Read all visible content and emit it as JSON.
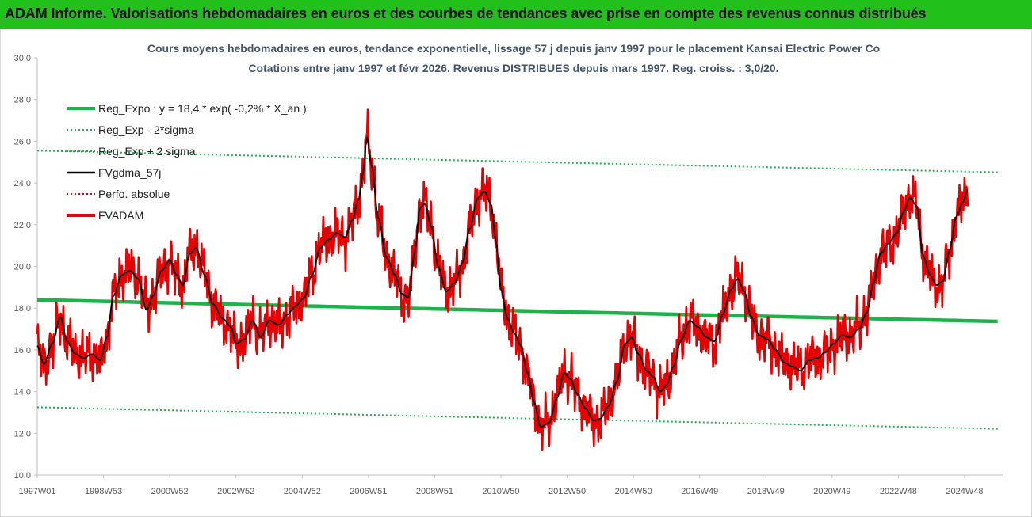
{
  "banner": {
    "title": "ADAM Informe. Valorisations hebdomadaires en euros et des courbes de tendances avec prise en compte des revenus connus distribués",
    "color": "#22c01a"
  },
  "chart_data": {
    "type": "line",
    "title": "Cours moyens hebdomadaires en euros, tendance exponentielle, lissage 57 j depuis janv 1997 pour le placement Kansai Electric Power Co",
    "subtitle": "Cotations entre janv 1997 et févr 2026. Revenus DISTRIBUES depuis mars 1997. Reg. croiss. : 3,0/20.",
    "xlabel": "",
    "ylabel": "",
    "ylim": [
      10.0,
      30.0
    ],
    "ytick_step": 2.0,
    "yticks": [
      "10,0",
      "12,0",
      "14,0",
      "16,0",
      "18,0",
      "20,0",
      "22,0",
      "24,0",
      "26,0",
      "28,0",
      "30,0"
    ],
    "xlim": [
      1997.0,
      2026.15
    ],
    "xticks": [
      {
        "label": "1997W01",
        "x": 1997.0
      },
      {
        "label": "1998W53",
        "x": 1999.0
      },
      {
        "label": "2000W52",
        "x": 2001.0
      },
      {
        "label": "2002W52",
        "x": 2003.0
      },
      {
        "label": "2004W52",
        "x": 2005.0
      },
      {
        "label": "2006W51",
        "x": 2007.0
      },
      {
        "label": "2008W51",
        "x": 2009.0
      },
      {
        "label": "2010W50",
        "x": 2011.0
      },
      {
        "label": "2012W50",
        "x": 2013.0
      },
      {
        "label": "2014W50",
        "x": 2015.0
      },
      {
        "label": "2016W49",
        "x": 2017.0
      },
      {
        "label": "2018W49",
        "x": 2019.0
      },
      {
        "label": "2020W49",
        "x": 2021.0
      },
      {
        "label": "2022W48",
        "x": 2023.0
      },
      {
        "label": "2024W48",
        "x": 2025.0
      }
    ],
    "grid": false,
    "legend_position": "top-left",
    "legend": [
      {
        "name": "Reg_Expo : y = 18,4 * exp( -0,2% *  X_an )",
        "color": "#1db34a",
        "style": "solid-thick"
      },
      {
        "name": "Reg_Exp - 2*sigma",
        "color": "#1db34a",
        "style": "dotted"
      },
      {
        "name": "Reg_Exp + 2 sigma",
        "color": "#1db34a",
        "style": "dotted"
      },
      {
        "name": "FVgdma_57j",
        "color": "#000000",
        "style": "solid"
      },
      {
        "name": "Perfo. absolue",
        "color": "#e60000",
        "style": "dotted"
      },
      {
        "name": "FVADAM",
        "color": "#e60000",
        "style": "solid-thick"
      }
    ],
    "regression": {
      "a": 18.4,
      "rate_per_year": -0.002,
      "low_offset": -5.15,
      "high_offset": 7.15
    },
    "fvadam_anchors": [
      [
        1997.0,
        16.2
      ],
      [
        1997.2,
        15.3
      ],
      [
        1997.45,
        16.3
      ],
      [
        1997.7,
        17.6
      ],
      [
        1997.9,
        16.4
      ],
      [
        1998.15,
        15.8
      ],
      [
        1998.4,
        15.6
      ],
      [
        1998.65,
        15.8
      ],
      [
        1998.9,
        15.5
      ],
      [
        1999.1,
        16.6
      ],
      [
        1999.3,
        18.6
      ],
      [
        1999.55,
        19.6
      ],
      [
        1999.8,
        19.8
      ],
      [
        2000.05,
        19.4
      ],
      [
        2000.3,
        17.9
      ],
      [
        2000.5,
        18.6
      ],
      [
        2000.75,
        19.8
      ],
      [
        2001.0,
        20.3
      ],
      [
        2001.2,
        19.6
      ],
      [
        2001.4,
        19.1
      ],
      [
        2001.6,
        20.6
      ],
      [
        2001.8,
        20.9
      ],
      [
        2002.05,
        19.6
      ],
      [
        2002.3,
        18.2
      ],
      [
        2002.6,
        17.5
      ],
      [
        2002.85,
        17.1
      ],
      [
        2003.0,
        16.3
      ],
      [
        2003.25,
        16.5
      ],
      [
        2003.5,
        17.4
      ],
      [
        2003.75,
        16.6
      ],
      [
        2004.0,
        17.4
      ],
      [
        2004.3,
        17.2
      ],
      [
        2004.55,
        17.7
      ],
      [
        2004.8,
        18.1
      ],
      [
        2005.05,
        18.5
      ],
      [
        2005.3,
        19.6
      ],
      [
        2005.55,
        20.9
      ],
      [
        2005.8,
        21.3
      ],
      [
        2006.05,
        21.6
      ],
      [
        2006.3,
        21.4
      ],
      [
        2006.5,
        22.2
      ],
      [
        2006.7,
        23.2
      ],
      [
        2006.85,
        24.6
      ],
      [
        2006.95,
        26.2
      ],
      [
        2007.1,
        24.8
      ],
      [
        2007.3,
        22.3
      ],
      [
        2007.55,
        20.4
      ],
      [
        2007.8,
        19.6
      ],
      [
        2008.0,
        18.7
      ],
      [
        2008.2,
        18.5
      ],
      [
        2008.4,
        20.7
      ],
      [
        2008.55,
        22.8
      ],
      [
        2008.7,
        23.0
      ],
      [
        2008.9,
        21.9
      ],
      [
        2009.1,
        20.0
      ],
      [
        2009.35,
        18.8
      ],
      [
        2009.6,
        19.2
      ],
      [
        2009.85,
        20.2
      ],
      [
        2010.05,
        21.8
      ],
      [
        2010.3,
        23.3
      ],
      [
        2010.5,
        23.6
      ],
      [
        2010.7,
        23.0
      ],
      [
        2010.85,
        21.2
      ],
      [
        2011.0,
        18.9
      ],
      [
        2011.2,
        17.5
      ],
      [
        2011.4,
        16.8
      ],
      [
        2011.6,
        16.2
      ],
      [
        2011.8,
        14.9
      ],
      [
        2012.0,
        13.5
      ],
      [
        2012.2,
        12.3
      ],
      [
        2012.45,
        12.5
      ],
      [
        2012.7,
        13.7
      ],
      [
        2012.9,
        14.9
      ],
      [
        2013.1,
        14.6
      ],
      [
        2013.3,
        13.9
      ],
      [
        2013.55,
        13.2
      ],
      [
        2013.8,
        12.6
      ],
      [
        2014.0,
        12.7
      ],
      [
        2014.25,
        13.3
      ],
      [
        2014.5,
        14.5
      ],
      [
        2014.75,
        16.3
      ],
      [
        2014.95,
        16.6
      ],
      [
        2015.15,
        15.8
      ],
      [
        2015.4,
        15.0
      ],
      [
        2015.6,
        14.7
      ],
      [
        2015.8,
        14.0
      ],
      [
        2016.0,
        14.3
      ],
      [
        2016.2,
        15.2
      ],
      [
        2016.45,
        16.5
      ],
      [
        2016.7,
        17.4
      ],
      [
        2016.95,
        17.1
      ],
      [
        2017.2,
        16.6
      ],
      [
        2017.45,
        16.4
      ],
      [
        2017.7,
        17.7
      ],
      [
        2017.95,
        18.9
      ],
      [
        2018.15,
        19.4
      ],
      [
        2018.35,
        18.8
      ],
      [
        2018.55,
        17.6
      ],
      [
        2018.8,
        16.7
      ],
      [
        2019.05,
        16.5
      ],
      [
        2019.3,
        16.0
      ],
      [
        2019.55,
        15.4
      ],
      [
        2019.8,
        15.2
      ],
      [
        2020.05,
        15.0
      ],
      [
        2020.3,
        15.5
      ],
      [
        2020.55,
        15.6
      ],
      [
        2020.8,
        15.9
      ],
      [
        2021.05,
        16.3
      ],
      [
        2021.3,
        16.7
      ],
      [
        2021.55,
        16.6
      ],
      [
        2021.8,
        17.0
      ],
      [
        2022.05,
        17.8
      ],
      [
        2022.25,
        19.2
      ],
      [
        2022.45,
        20.6
      ],
      [
        2022.7,
        21.1
      ],
      [
        2022.95,
        21.6
      ],
      [
        2023.15,
        22.6
      ],
      [
        2023.35,
        23.3
      ],
      [
        2023.55,
        22.9
      ],
      [
        2023.75,
        20.5
      ],
      [
        2023.95,
        19.6
      ],
      [
        2024.15,
        19.1
      ],
      [
        2024.35,
        19.3
      ],
      [
        2024.55,
        20.8
      ],
      [
        2024.75,
        22.4
      ],
      [
        2024.95,
        23.1
      ],
      [
        2025.1,
        23.7
      ]
    ]
  }
}
